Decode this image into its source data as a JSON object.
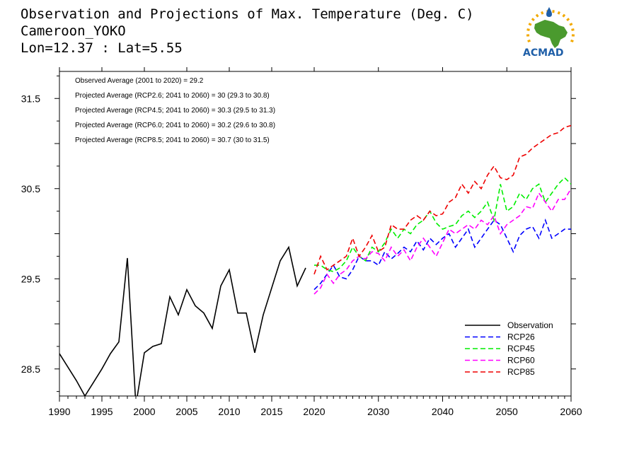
{
  "header": {
    "title_line1": "Observation and Projections of Max. Temperature (Deg. C)",
    "title_line2": "Cameroon_YOKO",
    "title_line3": "Lon=12.37 : Lat=5.55"
  },
  "logo": {
    "text": "ACMAD",
    "colors": {
      "text": "#1f5fa8",
      "africa": "#4a9a2e",
      "sun": "#f2a900",
      "drop": "#1f5fa8"
    }
  },
  "chart_data": {
    "type": "line",
    "annotations": [
      "Observed Average (2001 to 2020) = 29.2",
      "Projected Average (RCP2.6; 2041 to 2060) = 30 (29.3 to 30.8)",
      "Projected Average (RCP4.5; 2041 to 2060) = 30.3 (29.5 to 31.3)",
      "Projected Average (RCP6.0; 2041 to 2060) = 30.2 (29.6 to 30.8)",
      "Projected Average (RCP8.5; 2041 to 2060) = 30.7 (30 to 31.5)"
    ],
    "xlim": [
      1990,
      2060
    ],
    "ylim": [
      28.2,
      31.8
    ],
    "x_ticks_major": [
      1990,
      1995,
      2000,
      2005,
      2010,
      2015,
      2020,
      2030,
      2040,
      2050,
      2060
    ],
    "x_tick_labels": [
      "1990",
      "1995",
      "2000",
      "2005",
      "2010",
      "2015",
      "2020",
      "2030",
      "2040",
      "2050",
      "2060"
    ],
    "y_ticks": [
      28.5,
      29.5,
      30.5,
      31.5
    ],
    "y_tick_labels": [
      "28.5",
      "29.5",
      "30.5",
      "31.5"
    ],
    "legend_position": "bottom-right",
    "grid": false,
    "series": [
      {
        "name": "Observation",
        "color": "#000000",
        "dashed": false,
        "x": [
          1990,
          1991,
          1992,
          1993,
          1994,
          1995,
          1996,
          1997,
          1998,
          1999,
          2000,
          2001,
          2002,
          2003,
          2004,
          2005,
          2006,
          2007,
          2008,
          2009,
          2010,
          2011,
          2012,
          2013,
          2014,
          2015,
          2016,
          2017,
          2018,
          2019
        ],
        "y": [
          28.67,
          28.52,
          28.37,
          28.2,
          28.35,
          28.5,
          28.67,
          28.8,
          29.73,
          28.1,
          28.68,
          28.75,
          28.78,
          29.3,
          29.1,
          29.38,
          29.2,
          29.12,
          28.95,
          29.42,
          29.6,
          29.12,
          29.12,
          28.68,
          29.1,
          29.4,
          29.7,
          29.85,
          29.42,
          29.62
        ]
      },
      {
        "name": "RCP26",
        "color": "#0000ff",
        "dashed": true,
        "x": [
          2020,
          2021,
          2022,
          2023,
          2024,
          2025,
          2026,
          2027,
          2028,
          2029,
          2030,
          2031,
          2032,
          2033,
          2034,
          2035,
          2036,
          2037,
          2038,
          2039,
          2040,
          2041,
          2042,
          2043,
          2044,
          2045,
          2046,
          2047,
          2048,
          2049,
          2050,
          2051,
          2052,
          2053,
          2054,
          2055,
          2056,
          2057,
          2058,
          2059,
          2060
        ],
        "y": [
          29.38,
          29.45,
          29.55,
          29.65,
          29.52,
          29.5,
          29.6,
          29.75,
          29.7,
          29.7,
          29.65,
          29.8,
          29.72,
          29.78,
          29.85,
          29.8,
          29.92,
          29.82,
          29.95,
          29.88,
          29.95,
          30.0,
          29.85,
          29.95,
          30.05,
          29.85,
          29.95,
          30.05,
          30.15,
          30.1,
          29.95,
          29.8,
          29.98,
          30.05,
          30.08,
          29.95,
          30.15,
          29.95,
          30.0,
          30.05,
          30.05
        ]
      },
      {
        "name": "RCP45",
        "color": "#00ee00",
        "dashed": true,
        "x": [
          2020,
          2021,
          2022,
          2023,
          2024,
          2025,
          2026,
          2027,
          2028,
          2029,
          2030,
          2031,
          2032,
          2033,
          2034,
          2035,
          2036,
          2037,
          2038,
          2039,
          2040,
          2041,
          2042,
          2043,
          2044,
          2045,
          2046,
          2047,
          2048,
          2049,
          2050,
          2051,
          2052,
          2053,
          2054,
          2055,
          2056,
          2057,
          2058,
          2059,
          2060
        ],
        "y": [
          29.65,
          29.65,
          29.6,
          29.58,
          29.62,
          29.7,
          29.85,
          29.75,
          29.7,
          29.85,
          29.8,
          29.9,
          30.05,
          29.95,
          30.05,
          30.0,
          30.1,
          30.15,
          30.25,
          30.12,
          30.05,
          30.08,
          30.1,
          30.2,
          30.25,
          30.18,
          30.25,
          30.35,
          30.15,
          30.55,
          30.25,
          30.3,
          30.45,
          30.38,
          30.5,
          30.55,
          30.35,
          30.45,
          30.55,
          30.62,
          30.55
        ]
      },
      {
        "name": "RCP60",
        "color": "#ff00ff",
        "dashed": true,
        "x": [
          2020,
          2021,
          2022,
          2023,
          2024,
          2025,
          2026,
          2027,
          2028,
          2029,
          2030,
          2031,
          2032,
          2033,
          2034,
          2035,
          2036,
          2037,
          2038,
          2039,
          2040,
          2041,
          2042,
          2043,
          2044,
          2045,
          2046,
          2047,
          2048,
          2049,
          2050,
          2051,
          2052,
          2053,
          2054,
          2055,
          2056,
          2057,
          2058,
          2059,
          2060
        ],
        "y": [
          29.33,
          29.4,
          29.55,
          29.45,
          29.55,
          29.6,
          29.7,
          29.75,
          29.72,
          29.8,
          29.78,
          29.7,
          29.85,
          29.75,
          29.82,
          29.7,
          29.85,
          29.95,
          29.85,
          29.75,
          29.9,
          30.05,
          30.0,
          30.05,
          30.1,
          30.05,
          30.15,
          30.1,
          30.2,
          30.0,
          30.1,
          30.15,
          30.2,
          30.3,
          30.28,
          30.45,
          30.35,
          30.25,
          30.38,
          30.38,
          30.5
        ]
      },
      {
        "name": "RCP85",
        "color": "#ee0000",
        "dashed": true,
        "x": [
          2020,
          2021,
          2022,
          2023,
          2024,
          2025,
          2026,
          2027,
          2028,
          2029,
          2030,
          2031,
          2032,
          2033,
          2034,
          2035,
          2036,
          2037,
          2038,
          2039,
          2040,
          2041,
          2042,
          2043,
          2044,
          2045,
          2046,
          2047,
          2048,
          2049,
          2050,
          2051,
          2052,
          2053,
          2054,
          2055,
          2056,
          2057,
          2058,
          2059,
          2060
        ],
        "y": [
          29.55,
          29.75,
          29.6,
          29.65,
          29.7,
          29.75,
          29.95,
          29.75,
          29.85,
          29.98,
          29.8,
          29.85,
          30.1,
          30.05,
          30.05,
          30.15,
          30.2,
          30.15,
          30.25,
          30.2,
          30.22,
          30.35,
          30.4,
          30.55,
          30.45,
          30.58,
          30.5,
          30.65,
          30.75,
          30.62,
          30.6,
          30.65,
          30.85,
          30.88,
          30.95,
          31.0,
          31.05,
          31.1,
          31.12,
          31.18,
          31.2
        ]
      }
    ]
  }
}
